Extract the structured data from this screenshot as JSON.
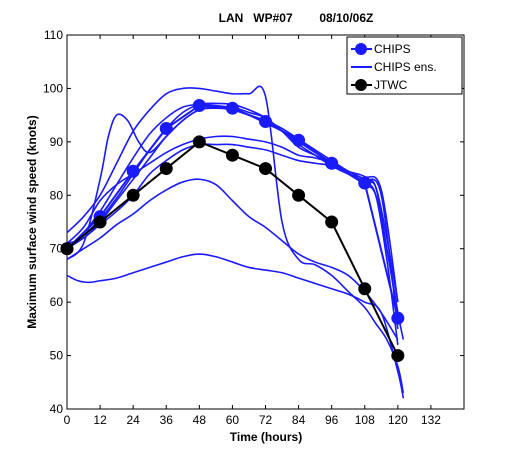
{
  "chart_data": {
    "type": "line",
    "title": "LAN   WP#07        08/10/06Z",
    "xlabel": "Time (hours)",
    "ylabel": "Maximum surface wind speed (knots)",
    "xlim": [
      0,
      144
    ],
    "ylim": [
      40,
      110
    ],
    "xticks": [
      0,
      12,
      24,
      36,
      48,
      60,
      72,
      84,
      96,
      108,
      120,
      132
    ],
    "yticks": [
      40,
      50,
      60,
      70,
      80,
      90,
      100,
      110
    ],
    "grid": false,
    "legend": {
      "placement": "top-right",
      "entries": [
        {
          "label": "CHIPS",
          "style": "line-marker",
          "color": "#1a1aff"
        },
        {
          "label": "CHIPS ens.",
          "style": "line",
          "color": "#1a1aff"
        },
        {
          "label": "JTWC",
          "style": "line-marker",
          "color": "#000000"
        }
      ]
    },
    "series": [
      {
        "name": "CHIPS",
        "color": "#1a1aff",
        "marker": true,
        "x": [
          0,
          12,
          24,
          36,
          48,
          60,
          72,
          84,
          96,
          108,
          120
        ],
        "y": [
          70,
          76,
          84.5,
          92.5,
          96.8,
          96.3,
          93.8,
          90.3,
          86,
          82.3,
          57
        ]
      },
      {
        "name": "JTWC",
        "color": "#000000",
        "marker": true,
        "x": [
          0,
          12,
          24,
          36,
          48,
          60,
          72,
          84,
          96,
          108,
          120
        ],
        "y": [
          70,
          75,
          80,
          85,
          90,
          87.5,
          85,
          80,
          75,
          62.5,
          50
        ]
      }
    ],
    "ensemble": {
      "color": "#1a1aff",
      "members": [
        {
          "x": [
            0,
            6,
            12,
            18,
            24,
            30,
            36,
            42,
            48,
            54,
            60,
            66,
            72,
            78,
            84,
            90,
            96,
            102,
            108,
            112,
            116,
            120,
            122
          ],
          "y": [
            73,
            76,
            80,
            86,
            92,
            96,
            99,
            100,
            100,
            99.5,
            99,
            99,
            98.5,
            75,
            68,
            67,
            65,
            62,
            59,
            56,
            53,
            48,
            43
          ]
        },
        {
          "x": [
            0,
            6,
            12,
            15,
            18,
            22,
            26,
            30,
            36,
            42,
            48,
            54,
            60,
            66,
            72,
            78,
            84,
            90,
            96,
            102,
            108,
            112,
            116,
            120
          ],
          "y": [
            68,
            71,
            83,
            91,
            95,
            94,
            90,
            88,
            91,
            94,
            96,
            96.5,
            96.5,
            95.5,
            94.5,
            92,
            89,
            87.5,
            86,
            84,
            82.5,
            80,
            68,
            52
          ]
        },
        {
          "x": [
            0,
            6,
            12,
            18,
            24,
            30,
            36,
            42,
            48,
            54,
            60,
            66,
            72,
            78,
            84,
            90,
            96,
            102,
            108,
            112,
            116,
            120
          ],
          "y": [
            70,
            73,
            77,
            82,
            87,
            91.5,
            94.5,
            96.5,
            97,
            96.8,
            96.3,
            95,
            93.5,
            92,
            90,
            88,
            86,
            84,
            82,
            80,
            70,
            58
          ]
        },
        {
          "x": [
            0,
            6,
            12,
            18,
            24,
            30,
            36,
            42,
            48,
            54,
            60,
            66,
            72,
            78,
            84,
            90,
            96,
            102,
            108,
            112,
            116,
            120,
            122
          ],
          "y": [
            71,
            72,
            75,
            79,
            83,
            87,
            91,
            94,
            96,
            96.3,
            96,
            95,
            94,
            92.5,
            90.5,
            88.5,
            86.5,
            84.5,
            83,
            81.5,
            70,
            58,
            53
          ]
        },
        {
          "x": [
            0,
            6,
            12,
            18,
            24,
            30,
            36,
            42,
            48,
            54,
            60,
            66,
            72,
            78,
            84,
            90,
            96,
            102,
            108,
            112,
            116,
            120
          ],
          "y": [
            70,
            72,
            74.5,
            77,
            80,
            84,
            86.5,
            88.5,
            89.5,
            89.5,
            89.5,
            89,
            88.5,
            87.5,
            86.5,
            86,
            85.5,
            84,
            82.5,
            81.5,
            72,
            60
          ]
        },
        {
          "x": [
            0,
            6,
            12,
            18,
            24,
            30,
            36,
            42,
            48,
            54,
            60,
            66,
            72,
            78,
            84,
            90,
            96,
            102,
            108,
            114,
            120
          ],
          "y": [
            71,
            74,
            79,
            82,
            84,
            86,
            88,
            89.5,
            90.5,
            91,
            91,
            90.5,
            90,
            89,
            87.5,
            87,
            86,
            84.5,
            83.5,
            81,
            60
          ]
        },
        {
          "x": [
            0,
            6,
            12,
            18,
            24,
            30,
            36,
            42,
            48,
            54,
            60,
            66,
            72,
            78,
            84,
            90,
            96,
            102,
            108,
            114,
            120
          ],
          "y": [
            68,
            70,
            72,
            74.5,
            76.5,
            79,
            81,
            82.5,
            83,
            82,
            79,
            76,
            74,
            71.5,
            69,
            67.5,
            66.5,
            65,
            62,
            58,
            53
          ]
        },
        {
          "x": [
            0,
            4,
            8,
            12,
            18,
            24,
            30,
            36,
            42,
            48,
            54,
            60,
            66,
            72,
            78,
            84,
            90,
            96,
            102,
            108,
            114,
            120,
            122
          ],
          "y": [
            65,
            64,
            63.7,
            64,
            64.5,
            65.5,
            66.5,
            67.5,
            68.5,
            69,
            68.5,
            67.5,
            66.5,
            66,
            65.5,
            64.5,
            63.5,
            62.5,
            61.5,
            60,
            58,
            47,
            42
          ]
        },
        {
          "x": [
            0,
            6,
            12,
            18,
            24,
            30,
            36,
            42,
            48,
            54,
            60,
            66,
            72,
            78,
            84,
            90,
            96,
            102,
            108,
            114,
            120
          ],
          "y": [
            70,
            72.5,
            75.5,
            79.5,
            84,
            88.5,
            92.5,
            95.5,
            97,
            97.2,
            97,
            96,
            94.5,
            92,
            89.5,
            87.5,
            85.5,
            84,
            83,
            80,
            55
          ]
        }
      ]
    }
  }
}
